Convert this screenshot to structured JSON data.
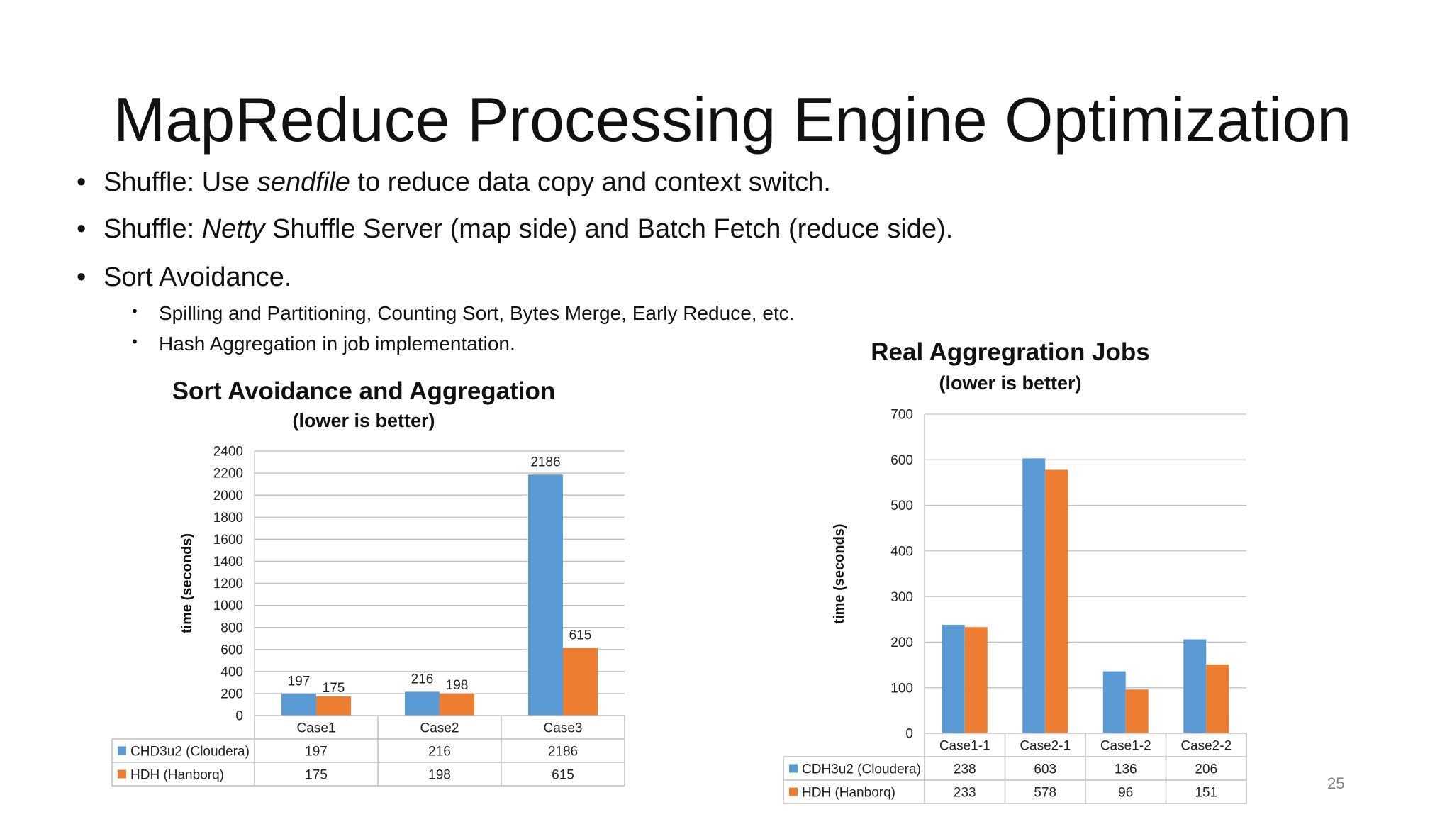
{
  "slide": {
    "title": "MapReduce Processing Engine Optimization",
    "page_number": "25"
  },
  "bullets": [
    {
      "parts": [
        {
          "t": "Shuffle: Use "
        },
        {
          "t": "sendfile",
          "i": true
        },
        {
          "t": " to reduce data copy and context switch."
        }
      ]
    },
    {
      "parts": [
        {
          "t": "Shuffle: "
        },
        {
          "t": "Netty",
          "i": true
        },
        {
          "t": " Shuffle Server (map side) and Batch Fetch (reduce side)."
        }
      ]
    },
    {
      "parts": [
        {
          "t": "Sort Avoidance."
        }
      ]
    }
  ],
  "sub_bullets": [
    "Spilling and Partitioning, Counting Sort, Bytes Merge, Early Reduce, etc.",
    "Hash Aggregation in job implementation."
  ],
  "colors": {
    "series1": "#5b9bd5",
    "series2": "#ed7d31",
    "grid": "#bfbfbf",
    "axis_text": "#222222"
  },
  "chart_data": [
    {
      "type": "bar",
      "title": "Sort Avoidance and Aggregation",
      "subtitle": "(lower is better)",
      "ylabel": "time (seconds)",
      "xlabel": "",
      "categories": [
        "Case1",
        "Case2",
        "Case3"
      ],
      "series": [
        {
          "name": "CHD3u2 (Cloudera)",
          "values": [
            197,
            216,
            2186
          ],
          "color": "#5b9bd5"
        },
        {
          "name": "HDH (Hanborq)",
          "values": [
            175,
            198,
            615
          ],
          "color": "#ed7d31"
        }
      ],
      "ylim": [
        0,
        2400
      ],
      "yticks": [
        0,
        200,
        400,
        600,
        800,
        1000,
        1200,
        1400,
        1600,
        1800,
        2000,
        2200,
        2400
      ],
      "data_labels": true,
      "grid": true,
      "legend": "data-table"
    },
    {
      "type": "bar",
      "title": "Real Aggregration Jobs",
      "subtitle": "(lower is better)",
      "ylabel": "time (seconds)",
      "xlabel": "",
      "categories": [
        "Case1-1",
        "Case2-1",
        "Case1-2",
        "Case2-2"
      ],
      "series": [
        {
          "name": "CDH3u2 (Cloudera)",
          "values": [
            238,
            603,
            136,
            206
          ],
          "color": "#5b9bd5"
        },
        {
          "name": "HDH (Hanborq)",
          "values": [
            233,
            578,
            96,
            151
          ],
          "color": "#ed7d31"
        }
      ],
      "ylim": [
        0,
        700
      ],
      "yticks": [
        0,
        100,
        200,
        300,
        400,
        500,
        600,
        700
      ],
      "data_labels": false,
      "grid": true,
      "legend": "data-table"
    }
  ]
}
